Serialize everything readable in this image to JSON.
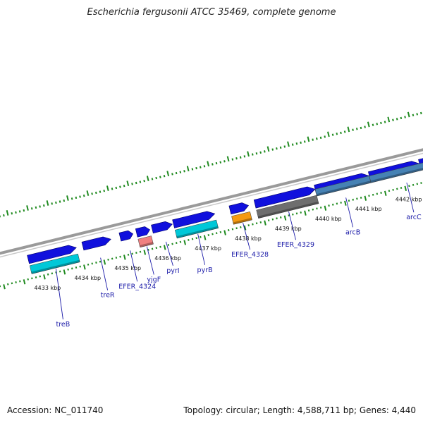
{
  "title": "Escherichia fergusonii ATCC 35469, complete genome",
  "footer": {
    "accession": "Accession: NC_011740",
    "stats": "Topology: circular; Length: 4,588,711 bp; Genes: 4,440"
  },
  "colors": {
    "cds_forward": "#1010dd",
    "cds_reverse": "#00c8d8",
    "pseudogene": "#f08080",
    "rna": "#f59a10",
    "mobile_element": "#6e6e6e",
    "backbone": "#9a9a9a",
    "ticks": "#1f8a1f",
    "gene_label": "#1a1aa8",
    "highlight_region": "#4682b4"
  },
  "scale": {
    "unit": "kbp",
    "labels": [
      {
        "kbp": 4433,
        "text": "4433 kbp"
      },
      {
        "kbp": 4434,
        "text": "4434 kbp"
      },
      {
        "kbp": 4435,
        "text": "4435 kbp"
      },
      {
        "kbp": 4436,
        "text": "4436 kbp"
      },
      {
        "kbp": 4437,
        "text": "4437 kbp"
      },
      {
        "kbp": 4438,
        "text": "4438 kbp"
      },
      {
        "kbp": 4439,
        "text": "4439 kbp"
      },
      {
        "kbp": 4440,
        "text": "4440 kbp"
      },
      {
        "kbp": 4441,
        "text": "4441 kbp"
      },
      {
        "kbp": 4442,
        "text": "4442 kbp"
      }
    ]
  },
  "genes": [
    {
      "name": "treB",
      "label": "treB",
      "strand": "reverse",
      "type": "cds",
      "start_kbp": 4432.72,
      "end_kbp": 4433.92
    },
    {
      "name": "treR",
      "label": "treR",
      "strand": "forward",
      "type": "cds",
      "start_kbp": 4434.08,
      "end_kbp": 4434.78
    },
    {
      "name": "EFER_4324",
      "label": "EFER_4324",
      "strand": "forward",
      "type": "cds",
      "start_kbp": 4435.01,
      "end_kbp": 4435.33
    },
    {
      "name": "yjgF",
      "label": "yjgF",
      "strand": "reverse",
      "type": "pseudo",
      "start_kbp": 4435.42,
      "end_kbp": 4435.75
    },
    {
      "name": "pyrI",
      "label": "pyrI",
      "strand": "forward",
      "type": "cds",
      "start_kbp": 4435.81,
      "end_kbp": 4436.31
    },
    {
      "name": "pyrB",
      "label": "pyrB",
      "strand": "reverse",
      "type": "cds",
      "start_kbp": 4436.34,
      "end_kbp": 4437.37
    },
    {
      "name": "EFER_4328",
      "label": "EFER_4328",
      "strand": "reverse",
      "type": "rna",
      "start_kbp": 4437.75,
      "end_kbp": 4438.21
    },
    {
      "name": "EFER_4329",
      "label": "EFER_4329",
      "strand": "reverse",
      "type": "mobile",
      "start_kbp": 4438.37,
      "end_kbp": 4439.87
    },
    {
      "name": "arcB",
      "label": "arcB",
      "strand": "reverse",
      "type": "region",
      "start_kbp": 4439.87,
      "end_kbp": 4441.22
    },
    {
      "name": "arcC",
      "label": "arcC",
      "strand": "reverse",
      "type": "region",
      "start_kbp": 4441.22,
      "end_kbp": 4442.9
    }
  ],
  "forward_blocks": [
    {
      "name": "block-treB",
      "start_kbp": 4432.72,
      "end_kbp": 4433.92
    },
    {
      "name": "block-treR",
      "start_kbp": 4434.08,
      "end_kbp": 4434.78
    },
    {
      "name": "block-EFER_4324",
      "start_kbp": 4435.01,
      "end_kbp": 4435.33
    },
    {
      "name": "block-yjgF",
      "start_kbp": 4435.42,
      "end_kbp": 4435.75
    },
    {
      "name": "block-pyrI",
      "start_kbp": 4435.81,
      "end_kbp": 4436.31
    },
    {
      "name": "block-pyrB",
      "start_kbp": 4436.34,
      "end_kbp": 4437.37
    },
    {
      "name": "block-EFER_4328",
      "start_kbp": 4437.75,
      "end_kbp": 4438.21
    },
    {
      "name": "block-EFER_4329",
      "start_kbp": 4438.37,
      "end_kbp": 4439.87
    },
    {
      "name": "block-arcB",
      "start_kbp": 4439.87,
      "end_kbp": 4441.22
    },
    {
      "name": "block-arcC",
      "start_kbp": 4441.22,
      "end_kbp": 4442.47
    },
    {
      "name": "block-arcC-2",
      "start_kbp": 4442.47,
      "end_kbp": 4443.4
    }
  ]
}
